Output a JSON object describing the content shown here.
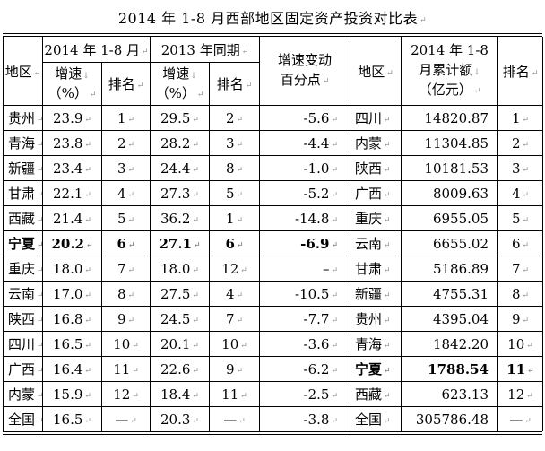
{
  "title": "2014 年 1-8 月西部地区固定资产投资对比表",
  "header": {
    "region": "地区",
    "group_2014": "2014 年 1-8 月",
    "group_2013": "2013 年同期",
    "growth_line1": "增速",
    "growth_line2": "（%）",
    "rank": "排名",
    "change_line1": "增速变动",
    "change_line2": "百分点",
    "region2": "地区",
    "amount_line1": "2014 年 1-8",
    "amount_line2": "月累计额",
    "amount_line3": "（亿元）",
    "rank2": "排名"
  },
  "rows": [
    {
      "region": "贵州",
      "g2014": "23.9",
      "r2014": "1",
      "g2013": "29.5",
      "r2013": "2",
      "chg": "-5.6",
      "region2": "四川",
      "amt": "14820.87",
      "rank2": "1",
      "bold_left": false,
      "bold_right": false
    },
    {
      "region": "青海",
      "g2014": "23.8",
      "r2014": "2",
      "g2013": "28.2",
      "r2013": "3",
      "chg": "-4.4",
      "region2": "内蒙",
      "amt": "11304.85",
      "rank2": "2",
      "bold_left": false,
      "bold_right": false
    },
    {
      "region": "新疆",
      "g2014": "23.4",
      "r2014": "3",
      "g2013": "24.4",
      "r2013": "8",
      "chg": "-1.0",
      "region2": "陕西",
      "amt": "10181.53",
      "rank2": "3",
      "bold_left": false,
      "bold_right": false
    },
    {
      "region": "甘肃",
      "g2014": "22.1",
      "r2014": "4",
      "g2013": "27.3",
      "r2013": "5",
      "chg": "-5.2",
      "region2": "广西",
      "amt": "8009.63",
      "rank2": "4",
      "bold_left": false,
      "bold_right": false
    },
    {
      "region": "西藏",
      "g2014": "21.4",
      "r2014": "5",
      "g2013": "36.2",
      "r2013": "1",
      "chg": "-14.8",
      "region2": "重庆",
      "amt": "6955.05",
      "rank2": "5",
      "bold_left": false,
      "bold_right": false
    },
    {
      "region": "宁夏",
      "g2014": "20.2",
      "r2014": "6",
      "g2013": "27.1",
      "r2013": "6",
      "chg": "-6.9",
      "region2": "云南",
      "amt": "6655.02",
      "rank2": "6",
      "bold_left": true,
      "bold_right": false
    },
    {
      "region": "重庆",
      "g2014": "18.0",
      "r2014": "7",
      "g2013": "18.0",
      "r2013": "12",
      "chg": "–",
      "region2": "甘肃",
      "amt": "5186.89",
      "rank2": "7",
      "bold_left": false,
      "bold_right": false
    },
    {
      "region": "云南",
      "g2014": "17.0",
      "r2014": "8",
      "g2013": "27.5",
      "r2013": "4",
      "chg": "-10.5",
      "region2": "新疆",
      "amt": "4755.31",
      "rank2": "8",
      "bold_left": false,
      "bold_right": false
    },
    {
      "region": "陕西",
      "g2014": "16.8",
      "r2014": "9",
      "g2013": "24.5",
      "r2013": "7",
      "chg": "-7.7",
      "region2": "贵州",
      "amt": "4395.04",
      "rank2": "9",
      "bold_left": false,
      "bold_right": false
    },
    {
      "region": "四川",
      "g2014": "16.5",
      "r2014": "10",
      "g2013": "20.1",
      "r2013": "10",
      "chg": "-3.6",
      "region2": "青海",
      "amt": "1842.20",
      "rank2": "10",
      "bold_left": false,
      "bold_right": false
    },
    {
      "region": "广西",
      "g2014": "16.4",
      "r2014": "11",
      "g2013": "22.6",
      "r2013": "9",
      "chg": "-6.2",
      "region2": "宁夏",
      "amt": "1788.54",
      "rank2": "11",
      "bold_left": false,
      "bold_right": true
    },
    {
      "region": "内蒙",
      "g2014": "15.9",
      "r2014": "12",
      "g2013": "18.4",
      "r2013": "11",
      "chg": "-2.5",
      "region2": "西藏",
      "amt": "623.13",
      "rank2": "12",
      "bold_left": false,
      "bold_right": false
    },
    {
      "region": "全国",
      "g2014": "16.5",
      "r2014": "—",
      "g2013": "20.3",
      "r2013": "—",
      "chg": "-3.8",
      "region2": "全国",
      "amt": "305786.48",
      "rank2": "—",
      "bold_left": false,
      "bold_right": false
    }
  ],
  "colors": {
    "background": "#ffffff",
    "text": "#000000",
    "border": "#000000",
    "formatting_mark": "#8f8f8f"
  }
}
